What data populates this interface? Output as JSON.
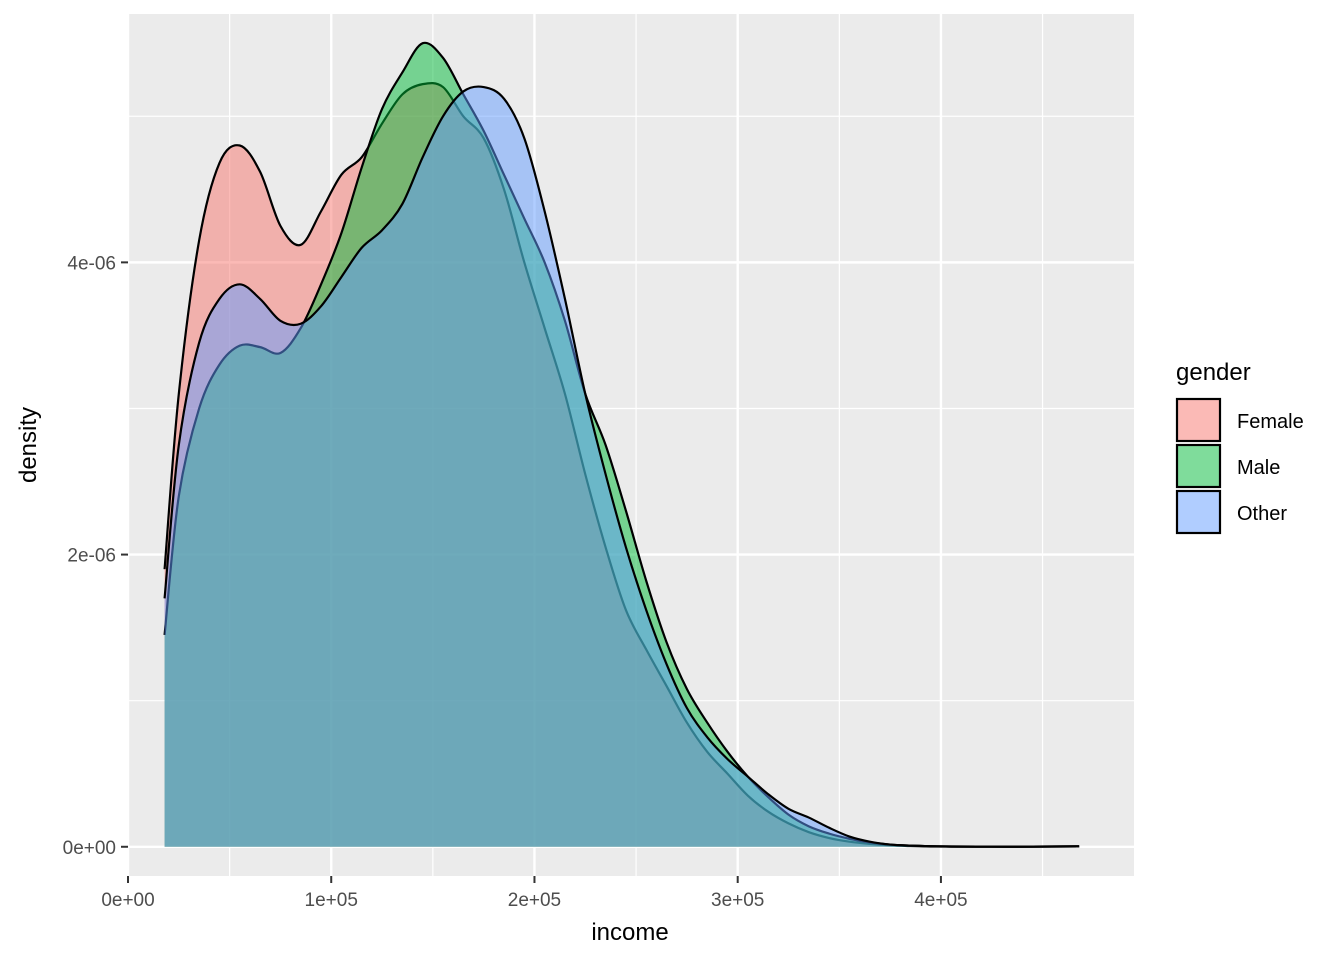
{
  "chart_data": {
    "type": "area",
    "xlabel": "income",
    "ylabel": "density",
    "xlim": [
      0,
      495000
    ],
    "ylim": [
      -2e-07,
      5.7e-06
    ],
    "x_ticks": [
      {
        "value": 0,
        "label": "0e+00"
      },
      {
        "value": 100000,
        "label": "1e+05"
      },
      {
        "value": 200000,
        "label": "2e+05"
      },
      {
        "value": 300000,
        "label": "3e+05"
      },
      {
        "value": 400000,
        "label": "4e+05"
      }
    ],
    "y_ticks": [
      {
        "value": 0,
        "label": "0e+00"
      },
      {
        "value": 2e-06,
        "label": "2e-06"
      },
      {
        "value": 4e-06,
        "label": "4e-06"
      }
    ],
    "grid": true,
    "legend": {
      "title": "gender",
      "position": "right"
    },
    "series": [
      {
        "name": "Female",
        "color": "#F8766D",
        "x": [
          18000,
          25000,
          35000,
          45000,
          55000,
          65000,
          75000,
          85000,
          95000,
          105000,
          115000,
          125000,
          135000,
          145000,
          155000,
          165000,
          175000,
          185000,
          195000,
          205000,
          215000,
          225000,
          235000,
          245000,
          255000,
          265000,
          275000,
          285000,
          295000,
          305000,
          315000,
          325000,
          335000,
          345000,
          355000,
          365000,
          375000,
          385000,
          395000,
          405000,
          425000,
          445000,
          468000
        ],
        "y": [
          1.9e-06,
          3.1e-06,
          4.15e-06,
          4.68e-06,
          4.8e-06,
          4.62e-06,
          4.25e-06,
          4.12e-06,
          4.35e-06,
          4.6e-06,
          4.72e-06,
          4.95e-06,
          5.15e-06,
          5.22e-06,
          5.2e-06,
          5e-06,
          4.85e-06,
          4.5e-06,
          4e-06,
          3.55e-06,
          3.1e-06,
          2.55e-06,
          2.05e-06,
          1.62e-06,
          1.35e-06,
          1.1e-06,
          8.5e-07,
          6.5e-07,
          5e-07,
          3.5e-07,
          2.4e-07,
          1.6e-07,
          1e-07,
          6e-08,
          3.5e-08,
          2e-08,
          1e-08,
          5e-09,
          2e-09,
          1e-09,
          5e-10,
          5e-10,
          3e-09
        ]
      },
      {
        "name": "Male",
        "color": "#00BA38",
        "x": [
          18000,
          25000,
          35000,
          45000,
          55000,
          65000,
          75000,
          85000,
          95000,
          105000,
          115000,
          125000,
          135000,
          145000,
          155000,
          165000,
          175000,
          185000,
          195000,
          205000,
          215000,
          225000,
          235000,
          245000,
          255000,
          265000,
          275000,
          285000,
          295000,
          305000,
          315000,
          325000,
          335000,
          345000,
          355000,
          365000,
          375000,
          385000,
          395000,
          405000,
          425000,
          445000,
          468000
        ],
        "y": [
          1.45e-06,
          2.4e-06,
          3e-06,
          3.3e-06,
          3.43e-06,
          3.42e-06,
          3.38e-06,
          3.55e-06,
          3.85e-06,
          4.2e-06,
          4.65e-06,
          5.05e-06,
          5.3e-06,
          5.5e-06,
          5.4e-06,
          5.15e-06,
          4.9e-06,
          4.6e-06,
          4.3e-06,
          4e-06,
          3.6e-06,
          3.1e-06,
          2.75e-06,
          2.3e-06,
          1.82e-06,
          1.4e-06,
          1.08e-06,
          8.5e-07,
          6.5e-07,
          4.8e-07,
          3.4e-07,
          2.2e-07,
          1.4e-07,
          9e-08,
          5.5e-08,
          3e-08,
          1.5e-08,
          8e-09,
          4e-09,
          2e-09,
          1e-09,
          1e-09,
          3e-09
        ]
      },
      {
        "name": "Other",
        "color": "#619CFF",
        "x": [
          18000,
          25000,
          35000,
          45000,
          55000,
          65000,
          75000,
          85000,
          95000,
          105000,
          115000,
          125000,
          135000,
          145000,
          155000,
          165000,
          175000,
          185000,
          195000,
          205000,
          215000,
          225000,
          235000,
          245000,
          255000,
          265000,
          275000,
          285000,
          295000,
          305000,
          315000,
          325000,
          335000,
          345000,
          355000,
          365000,
          375000,
          385000,
          395000,
          405000,
          425000,
          445000,
          468000
        ],
        "y": [
          1.7e-06,
          2.75e-06,
          3.45e-06,
          3.75e-06,
          3.85e-06,
          3.75e-06,
          3.6e-06,
          3.58e-06,
          3.7e-06,
          3.9e-06,
          4.1e-06,
          4.22e-06,
          4.4e-06,
          4.72e-06,
          5e-06,
          5.17e-06,
          5.2e-06,
          5.12e-06,
          4.85e-06,
          4.35e-06,
          3.75e-06,
          3.1e-06,
          2.55e-06,
          2.05e-06,
          1.62e-06,
          1.25e-06,
          9.5e-07,
          7.5e-07,
          6e-07,
          4.8e-07,
          3.6e-07,
          2.6e-07,
          2e-07,
          1.3e-07,
          7e-08,
          3.5e-08,
          1.5e-08,
          8e-09,
          4e-09,
          2e-09,
          1e-09,
          1e-09,
          3e-09
        ]
      }
    ]
  }
}
